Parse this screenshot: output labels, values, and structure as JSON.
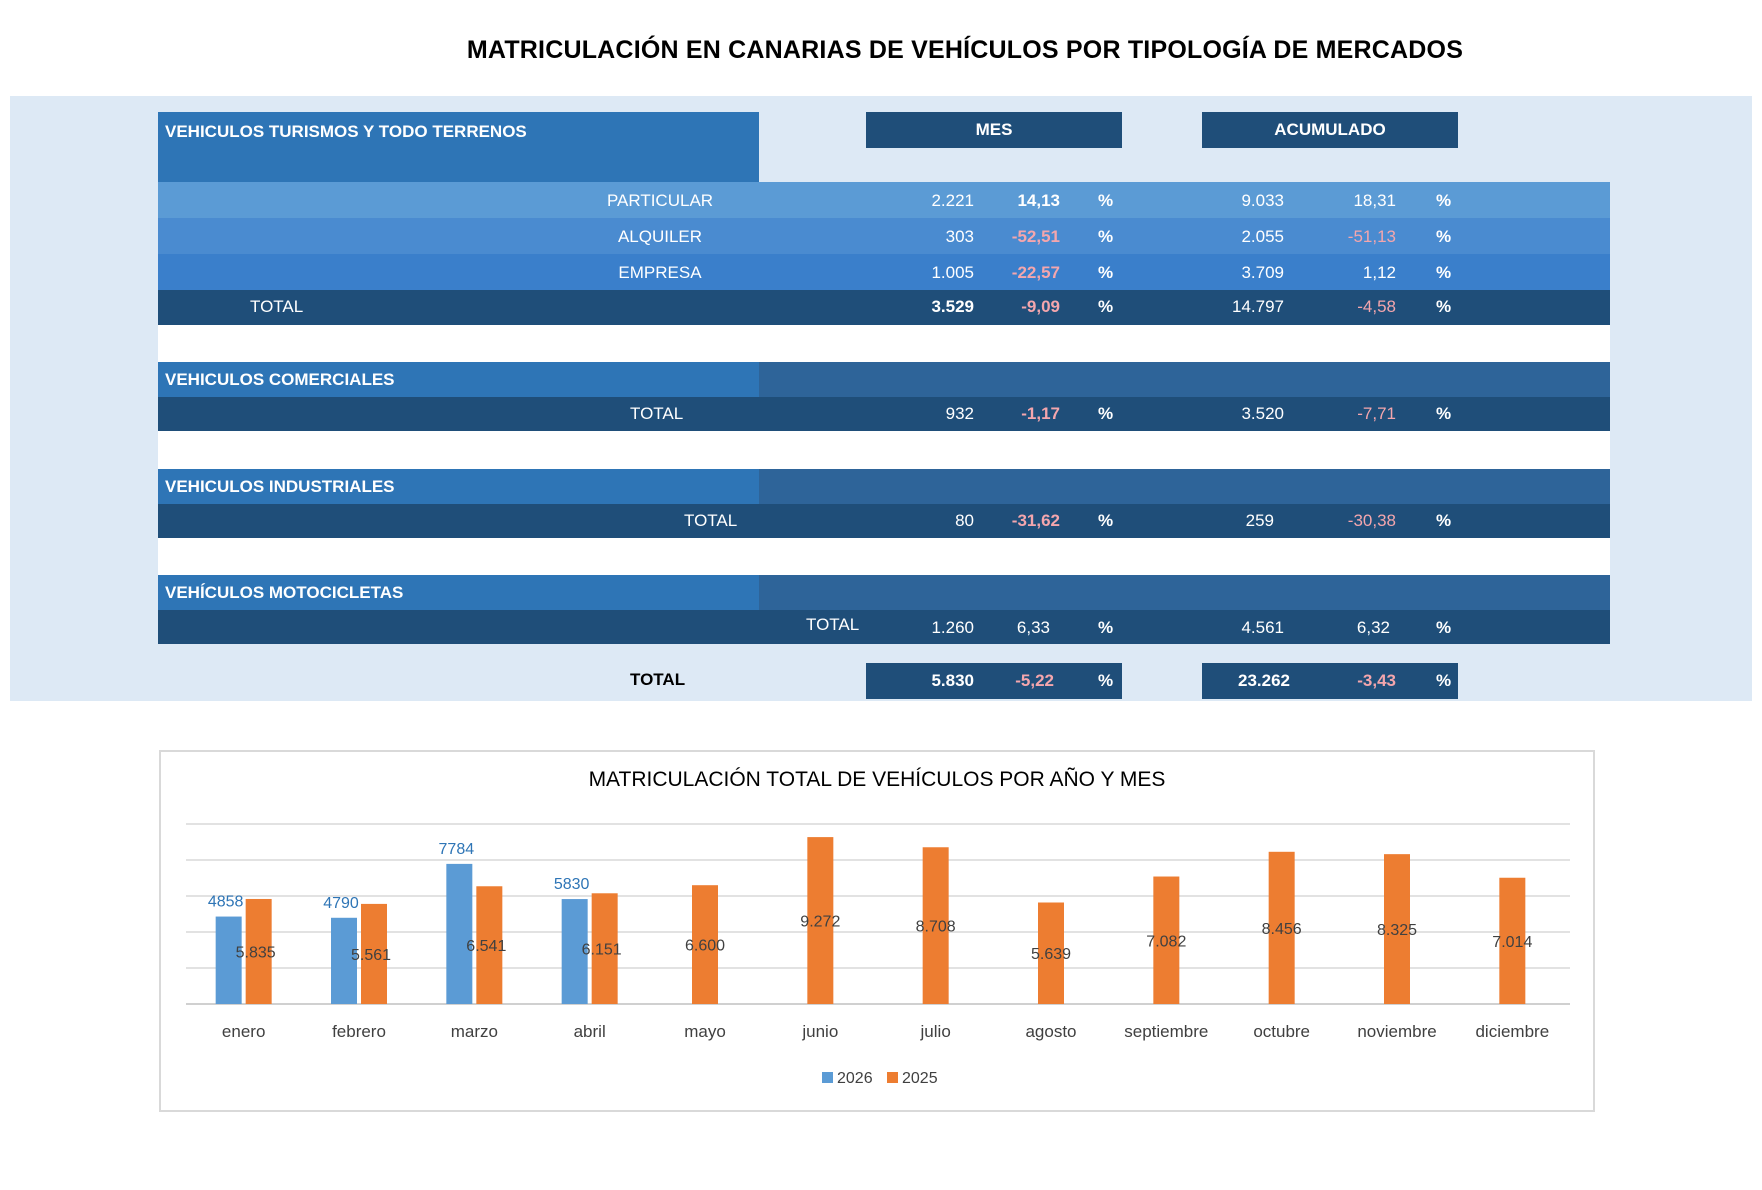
{
  "title": "MATRICULACIÓN EN CANARIAS DE VEHÍCULOS  POR TIPOLOGÍA DE MERCADOS",
  "colors": {
    "panel_bg": "#dde9f5",
    "dark_navy": "#1f4e79",
    "mid_blue": "#2e75b6",
    "row_particular": "#5b9bd5",
    "row_alquiler": "#4a8bd0",
    "row_empresa": "#3a7fcb",
    "negative_text": "#f4a6ad",
    "series_2026": "#5b9bd5",
    "series_2025": "#ed7d31"
  },
  "table": {
    "headers": {
      "mes": "MES",
      "acumulado": "ACUMULADO"
    },
    "percent_sign": "%",
    "turismos": {
      "section_label": "VEHICULOS TURISMOS Y  TODO TERRENOS",
      "rows": [
        {
          "label": "PARTICULAR",
          "mes_value": "2.221",
          "mes_pct": "14,13",
          "acum_value": "9.033",
          "acum_pct": "18,31"
        },
        {
          "label": "ALQUILER",
          "mes_value": "303",
          "mes_pct": "-52,51",
          "acum_value": "2.055",
          "acum_pct": "-51,13"
        },
        {
          "label": "EMPRESA",
          "mes_value": "1.005",
          "mes_pct": "-22,57",
          "acum_value": "3.709",
          "acum_pct": "1,12"
        }
      ],
      "total": {
        "label": "TOTAL",
        "mes_value": "3.529",
        "mes_pct": "-9,09",
        "acum_value": "14.797",
        "acum_pct": "-4,58"
      }
    },
    "comerciales": {
      "section_label": "VEHICULOS COMERCIALES",
      "total": {
        "label": "TOTAL",
        "mes_value": "932",
        "mes_pct": "-1,17",
        "acum_value": "3.520",
        "acum_pct": "-7,71"
      }
    },
    "industriales": {
      "section_label": "VEHICULOS INDUSTRIALES",
      "total": {
        "label": "TOTAL",
        "mes_value": "80",
        "mes_pct": "-31,62",
        "acum_value": "259",
        "acum_pct": "-30,38"
      }
    },
    "motocicletas": {
      "section_label": "VEHÍCULOS MOTOCICLETAS",
      "total": {
        "label": "TOTAL",
        "mes_value": "1.260",
        "mes_pct": "6,33",
        "acum_value": "4.561",
        "acum_pct": "6,32"
      }
    },
    "grand_total": {
      "label": "TOTAL",
      "mes_value": "5.830",
      "mes_pct": "-5,22",
      "acum_value": "23.262",
      "acum_pct": "-3,43"
    }
  },
  "chart_data": {
    "type": "bar",
    "title": "MATRICULACIÓN TOTAL DE VEHÍCULOS POR AÑO Y MES",
    "categories": [
      "enero",
      "febrero",
      "marzo",
      "abril",
      "mayo",
      "junio",
      "julio",
      "agosto",
      "septiembre",
      "octubre",
      "noviembre",
      "diciembre"
    ],
    "series": [
      {
        "name": "2026",
        "values": [
          4858,
          4790,
          7784,
          5830,
          null,
          null,
          null,
          null,
          null,
          null,
          null,
          null
        ],
        "labels": [
          "4858",
          "4790",
          "7784",
          "5830",
          "",
          "",
          "",
          "",
          "",
          "",
          "",
          ""
        ]
      },
      {
        "name": "2025",
        "values": [
          5835,
          5561,
          6541,
          6151,
          6600,
          9272,
          8708,
          5639,
          7082,
          8456,
          8325,
          7014
        ],
        "labels": [
          "5.835",
          "5.561",
          "6.541",
          "6.151",
          "6.600",
          "9.272",
          "8.708",
          "5.639",
          "7.082",
          "8.456",
          "8.325",
          "7.014"
        ]
      }
    ],
    "ylim": [
      0,
      10000
    ],
    "grid": true,
    "legend": "bottom"
  }
}
